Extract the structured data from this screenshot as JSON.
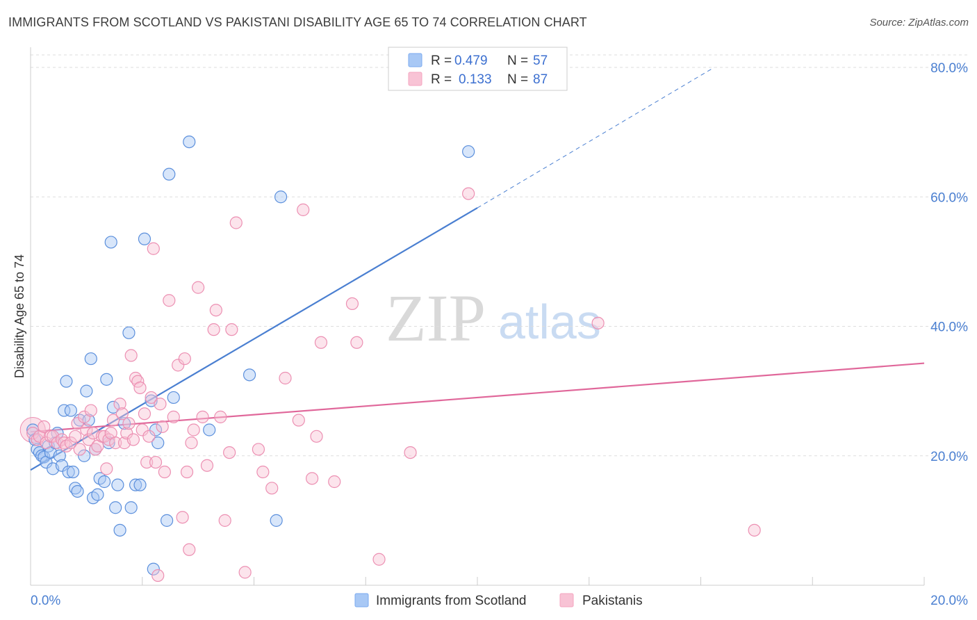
{
  "header": {
    "title": "IMMIGRANTS FROM SCOTLAND VS PAKISTANI DISABILITY AGE 65 TO 74 CORRELATION CHART",
    "source": "Source: ZipAtlas.com"
  },
  "watermark": {
    "zip": "ZIP",
    "atlas": "atlas"
  },
  "legend": {
    "r_label": "R =",
    "n_label": "N =",
    "series": [
      {
        "r": "0.479",
        "n": "57",
        "color": "#7aaaf0"
      },
      {
        "r": "0.133",
        "n": "87",
        "color": "#f4a5c0"
      }
    ]
  },
  "bottom_legend": [
    {
      "label": "Immigrants from Scotland",
      "color": "#7aaaf0"
    },
    {
      "label": "Pakistanis",
      "color": "#f4a5c0"
    }
  ],
  "chart_data": {
    "type": "scatter",
    "title": "IMMIGRANTS FROM SCOTLAND VS PAKISTANI DISABILITY AGE 65 TO 74 CORRELATION CHART",
    "xlabel": "",
    "ylabel": "Disability Age 65 to 74",
    "xlim": [
      0,
      20
    ],
    "ylim": [
      0,
      80
    ],
    "x_ticks": [
      "0.0%",
      "20.0%"
    ],
    "y_ticks": [
      "20.0%",
      "40.0%",
      "60.0%",
      "80.0%"
    ],
    "grid": true,
    "series": [
      {
        "name": "Immigrants from Scotland",
        "color": "#4a7fd1",
        "fill": "#a8c8f5",
        "trend": {
          "x0": 0,
          "y0": 17.8,
          "x1": 10,
          "y1": 58.3,
          "dash_to_x": 15.3,
          "dash_to_y": 80
        },
        "points": [
          [
            0.05,
            24.0
          ],
          [
            0.1,
            22.5
          ],
          [
            0.15,
            21.0
          ],
          [
            0.2,
            20.5
          ],
          [
            0.25,
            20.0
          ],
          [
            0.3,
            19.8
          ],
          [
            0.35,
            19.0
          ],
          [
            0.4,
            21.5
          ],
          [
            0.45,
            20.5
          ],
          [
            0.5,
            18.0
          ],
          [
            0.55,
            22.0
          ],
          [
            0.6,
            23.5
          ],
          [
            0.65,
            20.0
          ],
          [
            0.7,
            18.5
          ],
          [
            0.75,
            27.0
          ],
          [
            0.8,
            31.5
          ],
          [
            0.85,
            17.5
          ],
          [
            0.9,
            27.0
          ],
          [
            0.95,
            17.5
          ],
          [
            1.0,
            15.0
          ],
          [
            1.05,
            14.5
          ],
          [
            1.1,
            25.5
          ],
          [
            1.2,
            20.0
          ],
          [
            1.25,
            30.0
          ],
          [
            1.3,
            25.5
          ],
          [
            1.35,
            35.0
          ],
          [
            1.4,
            13.5
          ],
          [
            1.45,
            21.0
          ],
          [
            1.5,
            14.0
          ],
          [
            1.55,
            16.5
          ],
          [
            1.65,
            16.0
          ],
          [
            1.7,
            31.8
          ],
          [
            1.75,
            22.0
          ],
          [
            1.8,
            53.0
          ],
          [
            1.85,
            27.5
          ],
          [
            1.9,
            12.0
          ],
          [
            1.95,
            15.5
          ],
          [
            2.0,
            8.5
          ],
          [
            2.1,
            25.0
          ],
          [
            2.2,
            39.0
          ],
          [
            2.25,
            12.0
          ],
          [
            2.35,
            15.5
          ],
          [
            2.45,
            15.5
          ],
          [
            2.55,
            53.5
          ],
          [
            2.7,
            28.5
          ],
          [
            2.75,
            2.5
          ],
          [
            2.8,
            24.0
          ],
          [
            2.85,
            22.0
          ],
          [
            3.05,
            10.0
          ],
          [
            3.1,
            63.5
          ],
          [
            3.2,
            29.0
          ],
          [
            3.55,
            68.5
          ],
          [
            4.0,
            24.0
          ],
          [
            4.9,
            32.5
          ],
          [
            5.5,
            10.0
          ],
          [
            5.6,
            60.0
          ],
          [
            9.8,
            67.0
          ]
        ]
      },
      {
        "name": "Pakistanis",
        "color": "#e0679a",
        "fill": "#f8c3d5",
        "trend": {
          "x0": 0,
          "y0": 23.7,
          "x1": 20,
          "y1": 34.3
        },
        "points": [
          [
            0.05,
            23.5
          ],
          [
            0.15,
            22.5
          ],
          [
            0.2,
            23.0
          ],
          [
            0.3,
            24.5
          ],
          [
            0.35,
            22.0
          ],
          [
            0.45,
            23.0
          ],
          [
            0.5,
            23.0
          ],
          [
            0.6,
            22.0
          ],
          [
            0.7,
            22.5
          ],
          [
            0.75,
            22.0
          ],
          [
            0.8,
            21.5
          ],
          [
            0.9,
            22.0
          ],
          [
            1.0,
            23.0
          ],
          [
            1.05,
            25.0
          ],
          [
            1.1,
            21.0
          ],
          [
            1.2,
            26.0
          ],
          [
            1.25,
            24.0
          ],
          [
            1.3,
            22.5
          ],
          [
            1.35,
            27.0
          ],
          [
            1.4,
            23.5
          ],
          [
            1.45,
            21.0
          ],
          [
            1.5,
            21.5
          ],
          [
            1.6,
            23.0
          ],
          [
            1.65,
            23.0
          ],
          [
            1.7,
            18.0
          ],
          [
            1.75,
            22.5
          ],
          [
            1.8,
            23.5
          ],
          [
            1.85,
            25.5
          ],
          [
            1.9,
            22.0
          ],
          [
            2.0,
            28.0
          ],
          [
            2.05,
            26.5
          ],
          [
            2.1,
            22.0
          ],
          [
            2.15,
            23.5
          ],
          [
            2.2,
            25.0
          ],
          [
            2.25,
            35.5
          ],
          [
            2.3,
            22.5
          ],
          [
            2.35,
            32.0
          ],
          [
            2.4,
            31.5
          ],
          [
            2.45,
            30.5
          ],
          [
            2.5,
            24.0
          ],
          [
            2.55,
            26.5
          ],
          [
            2.6,
            19.0
          ],
          [
            2.65,
            23.0
          ],
          [
            2.7,
            29.0
          ],
          [
            2.75,
            52.0
          ],
          [
            2.8,
            19.0
          ],
          [
            2.85,
            1.5
          ],
          [
            2.9,
            28.0
          ],
          [
            2.95,
            24.5
          ],
          [
            3.0,
            17.5
          ],
          [
            3.1,
            44.0
          ],
          [
            3.2,
            26.0
          ],
          [
            3.3,
            34.0
          ],
          [
            3.4,
            10.5
          ],
          [
            3.45,
            35.0
          ],
          [
            3.5,
            17.5
          ],
          [
            3.55,
            5.5
          ],
          [
            3.6,
            22.0
          ],
          [
            3.65,
            24.0
          ],
          [
            3.75,
            46.0
          ],
          [
            3.85,
            26.0
          ],
          [
            3.95,
            18.5
          ],
          [
            4.1,
            39.5
          ],
          [
            4.15,
            42.5
          ],
          [
            4.25,
            26.0
          ],
          [
            4.35,
            10.0
          ],
          [
            4.45,
            20.5
          ],
          [
            4.5,
            39.5
          ],
          [
            4.6,
            56.0
          ],
          [
            4.8,
            2.0
          ],
          [
            5.1,
            21.0
          ],
          [
            5.2,
            17.5
          ],
          [
            5.4,
            15.0
          ],
          [
            5.7,
            32.0
          ],
          [
            6.0,
            25.5
          ],
          [
            6.1,
            58.0
          ],
          [
            6.3,
            16.5
          ],
          [
            6.4,
            23.0
          ],
          [
            6.5,
            37.5
          ],
          [
            6.8,
            16.0
          ],
          [
            7.2,
            43.5
          ],
          [
            7.3,
            37.5
          ],
          [
            7.8,
            4.0
          ],
          [
            8.5,
            20.5
          ],
          [
            9.8,
            60.5
          ],
          [
            12.7,
            40.5
          ],
          [
            16.2,
            8.5
          ]
        ]
      }
    ]
  }
}
